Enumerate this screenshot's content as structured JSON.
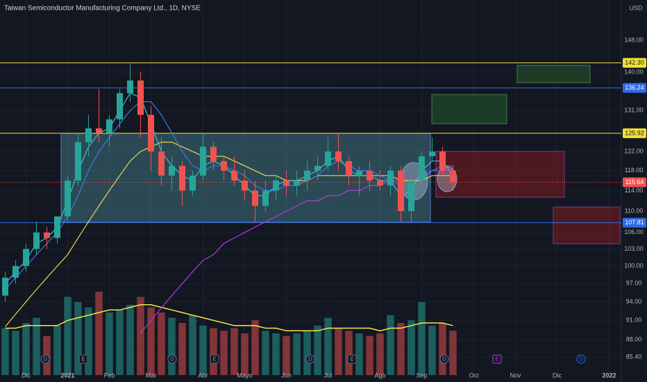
{
  "chart_data": {
    "type": "candlestick",
    "title": "Taiwan Semiconductor Manufacturing Company Ltd., 1D, NYSE",
    "currency": "USD",
    "log": true,
    "grid": true,
    "categories": [
      null,
      null,
      "Dic",
      null,
      null,
      null,
      "2021",
      null,
      null,
      null,
      "Feb",
      null,
      null,
      null,
      "Mar",
      null,
      null,
      null,
      null,
      "Abr",
      null,
      null,
      null,
      "Mayo",
      null,
      null,
      null,
      "Jun",
      null,
      null,
      null,
      "Jul",
      null,
      null,
      null,
      null,
      "Ago",
      null,
      null,
      null,
      "Sep",
      null,
      null,
      null,
      null,
      "Oct",
      null,
      null,
      null,
      "Nov",
      null,
      null,
      null,
      "Dic",
      null,
      null,
      null,
      null,
      "2022"
    ],
    "open": [
      95,
      98,
      100,
      103,
      106,
      105,
      109,
      116,
      124,
      127,
      126,
      129,
      135,
      138,
      130,
      122,
      117,
      119,
      114,
      117,
      123,
      120,
      118,
      116,
      114,
      111,
      114,
      116,
      115,
      116,
      118,
      119,
      122,
      120,
      117,
      118,
      116,
      115,
      118,
      110,
      116,
      121,
      122,
      118,
      null,
      null,
      null,
      null,
      null,
      null,
      null,
      null,
      null,
      null,
      null,
      null,
      null,
      null,
      null
    ],
    "high": [
      99,
      101,
      104,
      108,
      107,
      109,
      117,
      126,
      130,
      136,
      130,
      136,
      142.3,
      140,
      132,
      125,
      121,
      120,
      118,
      126,
      124,
      121,
      121,
      118,
      116,
      116,
      117,
      118,
      118,
      120,
      121,
      125,
      126,
      121,
      119,
      120,
      118,
      119,
      119,
      117,
      122,
      125,
      123,
      119,
      null,
      null,
      null,
      null,
      null,
      null,
      null,
      null,
      null,
      null,
      null,
      null,
      null,
      null,
      null
    ],
    "low": [
      94,
      97,
      99,
      102,
      103,
      104,
      108,
      115,
      121,
      124,
      123,
      127,
      133,
      125,
      118,
      115,
      114,
      111,
      113,
      116,
      118,
      116,
      115,
      112,
      108,
      110,
      112,
      113,
      113,
      114,
      116,
      118,
      118,
      115,
      113,
      114,
      114,
      113,
      108,
      108,
      115,
      120,
      117,
      114,
      null,
      null,
      null,
      null,
      null,
      null,
      null,
      null,
      null,
      null,
      null,
      null,
      null,
      null,
      null
    ],
    "close": [
      98,
      100,
      103,
      106,
      105,
      109,
      116,
      124,
      127,
      126,
      129,
      135,
      138,
      130,
      122,
      117,
      119,
      114,
      117,
      123,
      120,
      118,
      116,
      114,
      111,
      114,
      116,
      115,
      116,
      118,
      119,
      122,
      120,
      117,
      118,
      116,
      115,
      118,
      110,
      116,
      121,
      122,
      118,
      115.64,
      null,
      null,
      null,
      null,
      null,
      null,
      null,
      null,
      null,
      null,
      null,
      null,
      null,
      null,
      null
    ],
    "up_color": "#26a69a",
    "down_color": "#ef5350",
    "series": [
      {
        "color": "#f2d54a",
        "values": [
          90,
          92,
          94,
          96,
          98,
          100,
          102,
          105,
          108,
          111,
          114,
          117,
          120,
          122,
          123,
          124,
          124,
          123,
          122,
          121,
          121,
          121,
          120,
          119,
          118,
          117,
          117,
          116,
          116,
          116,
          117,
          117,
          117,
          117,
          117,
          117,
          117,
          117,
          116,
          116,
          116,
          117,
          117,
          117,
          null,
          null,
          null,
          null,
          null,
          null,
          null,
          null,
          null,
          null,
          null,
          null,
          null,
          null,
          null
        ]
      },
      {
        "color": "#b43cdc",
        "values": [
          null,
          null,
          null,
          null,
          null,
          null,
          null,
          null,
          null,
          null,
          null,
          null,
          null,
          89,
          91,
          93,
          95,
          97,
          99,
          101,
          102,
          104,
          105,
          106,
          107,
          108,
          109,
          110,
          111,
          112,
          112,
          113,
          113,
          114,
          114,
          115,
          115,
          116,
          116,
          117,
          117,
          118,
          118,
          118,
          null,
          null,
          null,
          null,
          null,
          null,
          null,
          null,
          null,
          null,
          null,
          null,
          null,
          null,
          null
        ]
      },
      {
        "color": "#3d7be0",
        "values": [
          96,
          98,
          100,
          102,
          104,
          106,
          109,
          113,
          118,
          122,
          125,
          128,
          131,
          133,
          133,
          130,
          126,
          122,
          119,
          118,
          119,
          119,
          118,
          117,
          115,
          114,
          114,
          115,
          115,
          116,
          117,
          119,
          120,
          119,
          118,
          118,
          117,
          116,
          115,
          115,
          116,
          118,
          119,
          119,
          null,
          null,
          null,
          null,
          null,
          null,
          null,
          null,
          null,
          null,
          null,
          null,
          null,
          null,
          null
        ]
      },
      {
        "color": "#4fb8d6",
        "values": [
          97,
          99,
          101,
          104,
          105,
          107,
          112,
          118,
          123,
          126,
          127,
          131,
          135,
          134,
          128,
          122,
          119,
          117,
          116,
          119,
          120,
          119,
          117,
          115,
          113,
          113,
          115,
          116,
          116,
          117,
          118,
          120,
          121,
          118,
          117,
          117,
          116,
          116,
          113,
          114,
          118,
          120,
          120,
          117,
          null,
          null,
          null,
          null,
          null,
          null,
          null,
          null,
          null,
          null,
          null,
          null,
          null,
          null,
          null
        ]
      }
    ],
    "volume": {
      "lim": [
        0,
        40
      ],
      "values": [
        18,
        17,
        20,
        22,
        15,
        19,
        30,
        28,
        26,
        32,
        24,
        25,
        27,
        30,
        26,
        24,
        22,
        20,
        23,
        19,
        18,
        17,
        18,
        16,
        21,
        17,
        16,
        15,
        16,
        17,
        19,
        22,
        18,
        17,
        16,
        15,
        16,
        23,
        20,
        21,
        28,
        19,
        20,
        17,
        null,
        null,
        null,
        null,
        null,
        null,
        null,
        null,
        null,
        null,
        null,
        null,
        null,
        null,
        null
      ],
      "ma_color": "#f2e94a",
      "ma": [
        18,
        18,
        19,
        19,
        19,
        19,
        21,
        22,
        23,
        24,
        25,
        25,
        26,
        27,
        27,
        26,
        25,
        24,
        23,
        22,
        21,
        20,
        19,
        19,
        19,
        18,
        18,
        17,
        17,
        17,
        17,
        18,
        18,
        18,
        18,
        18,
        17,
        18,
        18,
        19,
        20,
        20,
        20,
        19,
        null,
        null,
        null,
        null,
        null,
        null,
        null,
        null,
        null,
        null,
        null,
        null,
        null,
        null,
        null
      ]
    },
    "ylim": [
      82.76,
      158.7
    ],
    "yticks": [
      {
        "value": 148,
        "label": "148.00"
      },
      {
        "value": 140,
        "label": "140.00"
      },
      {
        "value": 131,
        "label": "131.00"
      },
      {
        "value": 122,
        "label": "122.00"
      },
      {
        "value": 118,
        "label": "118.00"
      },
      {
        "value": 114,
        "label": "114.00"
      },
      {
        "value": 110,
        "label": "110.00"
      },
      {
        "value": 106,
        "label": "106.00"
      },
      {
        "value": 103,
        "label": "103.00"
      },
      {
        "value": 100,
        "label": "100.00"
      },
      {
        "value": 97,
        "label": "97.00"
      },
      {
        "value": 94,
        "label": "94.00"
      },
      {
        "value": 91,
        "label": "91.00"
      },
      {
        "value": 88,
        "label": "88.00"
      },
      {
        "value": 85.4,
        "label": "85.40"
      }
    ],
    "levels": [
      {
        "value": 142.3,
        "label": "142.30",
        "color": "#f0e130"
      },
      {
        "value": 136.24,
        "label": "136.24",
        "color": "#2e6be6"
      },
      {
        "value": 125.92,
        "label": "125.92",
        "color": "#f0e130"
      },
      {
        "value": 115.64,
        "label": "115.64",
        "color": "#ef5350"
      },
      {
        "value": 107.81,
        "label": "107.81",
        "color": "#2e6be6"
      }
    ],
    "events": [
      "D",
      "E",
      "D",
      "E",
      "D",
      "E",
      "D",
      "E",
      "D"
    ]
  }
}
